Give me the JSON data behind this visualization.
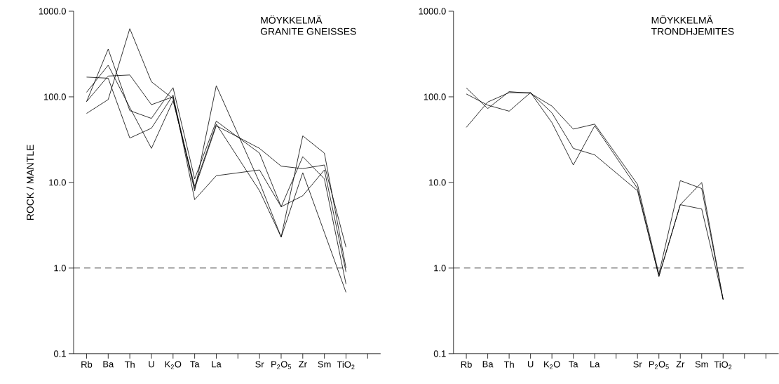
{
  "chart_data": [
    {
      "type": "line",
      "title": "MÖYKKELMÄ",
      "subtitle": "GRANITE GNEISSES",
      "ylabel": "ROCK / MANTLE",
      "categories": [
        "Rb",
        "Ba",
        "Th",
        "U",
        "K$_{2}$O",
        "Ta",
        "La",
        null,
        "Sr",
        "P$_{2}$O$_{5}$",
        "Zr",
        "Sm",
        "TiO$_{2}$",
        null
      ],
      "series": [
        {
          "color": "#000000",
          "values": [
            64,
            93,
            626,
            150,
            95,
            8,
            135,
            null,
            10,
            2.3,
            35,
            22,
            1.0,
            null
          ]
        },
        {
          "color": "#000000",
          "values": [
            88,
            361,
            69,
            56,
            128,
            11,
            52,
            null,
            22,
            5.2,
            20,
            11,
            0.65,
            null
          ]
        },
        {
          "color": "#000000",
          "values": [
            113,
            234,
            75,
            25,
            90,
            9,
            48,
            null,
            8,
            2.3,
            13,
            2.6,
            0.52,
            null
          ]
        },
        {
          "color": "#000000",
          "values": [
            170,
            165,
            33,
            43,
            105,
            6.3,
            12,
            null,
            14,
            5.2,
            7,
            14,
            0.9,
            null
          ]
        },
        {
          "color": "#000000",
          "values": [
            88,
            175,
            180,
            81,
            100,
            8.5,
            46,
            null,
            25,
            15.5,
            14.5,
            16,
            1.75,
            null
          ]
        }
      ],
      "ylim": [
        0.1,
        1000
      ],
      "log": true,
      "yticks": [
        {
          "value": 0.1,
          "label": "0.1"
        },
        {
          "value": 1,
          "label": "1.0"
        },
        {
          "value": 10,
          "label": "10.0"
        },
        {
          "value": 100,
          "label": "100.0"
        },
        {
          "value": 1000,
          "label": "1000.0"
        }
      ],
      "ref_lines": [
        {
          "axis": "y",
          "value": 1,
          "color": "#000000",
          "line_style": "dashed"
        }
      ],
      "grid": false,
      "marker": "none",
      "line_style": "solid"
    },
    {
      "type": "line",
      "title": "MÖYKKELMÄ",
      "subtitle": "TRONDHJEMITES",
      "categories": [
        "Rb",
        "Ba",
        "Th",
        "U",
        "K$_{2}$O",
        "Ta",
        "La",
        null,
        "Sr",
        "P$_{2}$O$_{5}$",
        "Zr",
        "Sm",
        "TiO$_{2}$",
        null,
        null
      ],
      "series": [
        {
          "color": "#000000",
          "values": [
            127,
            73,
            115,
            110,
            78,
            42,
            48,
            null,
            9.5,
            0.85,
            10.5,
            8.5,
            0.43,
            null,
            null
          ]
        },
        {
          "color": "#000000",
          "values": [
            108,
            80,
            68,
            112,
            65,
            25,
            21,
            null,
            8,
            0.8,
            5.5,
            4.9,
            0.43,
            null,
            null
          ]
        },
        {
          "color": "#000000",
          "values": [
            44,
            87,
            112,
            112,
            50,
            16,
            46,
            null,
            8.5,
            0.8,
            5.5,
            10,
            0.43,
            null,
            null
          ]
        }
      ],
      "ylim": [
        0.1,
        1000
      ],
      "log": true,
      "yticks": [
        {
          "value": 0.1,
          "label": "0.1"
        },
        {
          "value": 1,
          "label": "1.0"
        },
        {
          "value": 10,
          "label": "10.0"
        },
        {
          "value": 100,
          "label": "100.0"
        },
        {
          "value": 1000,
          "label": "1000.0"
        }
      ],
      "ref_lines": [
        {
          "axis": "y",
          "value": 1,
          "color": "#000000",
          "line_style": "dashed"
        }
      ],
      "grid": false,
      "marker": "none",
      "line_style": "solid"
    }
  ]
}
